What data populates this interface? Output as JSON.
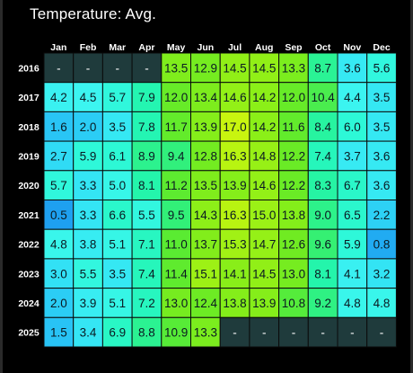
{
  "header": {
    "title": "Temperature: Avg."
  },
  "colors": {
    "missing": "#1f3b3c",
    "background": "#000000",
    "text": "#ffffff"
  },
  "chart_data": {
    "type": "heatmap",
    "title": "Temperature: Avg.",
    "columns": [
      "Jan",
      "Feb",
      "Mar",
      "Apr",
      "May",
      "Jun",
      "Jul",
      "Aug",
      "Sep",
      "Oct",
      "Nov",
      "Dec"
    ],
    "rows": [
      "2016",
      "2017",
      "2018",
      "2019",
      "2020",
      "2021",
      "2022",
      "2023",
      "2024",
      "2025"
    ],
    "missing_label": "-",
    "values": [
      [
        null,
        null,
        null,
        null,
        13.5,
        12.9,
        14.5,
        14.5,
        13.3,
        8.7,
        3.6,
        5.6
      ],
      [
        4.2,
        4.5,
        5.7,
        7.9,
        12.0,
        13.4,
        14.6,
        14.2,
        12.0,
        10.4,
        4.4,
        3.5
      ],
      [
        1.6,
        2.0,
        3.5,
        7.8,
        11.7,
        13.9,
        17.0,
        14.2,
        11.6,
        8.4,
        6.0,
        3.5
      ],
      [
        2.7,
        5.9,
        6.1,
        8.9,
        9.4,
        12.8,
        16.3,
        14.8,
        12.2,
        7.4,
        3.7,
        3.6
      ],
      [
        5.7,
        3.3,
        5.0,
        8.1,
        11.2,
        13.5,
        13.9,
        14.6,
        12.2,
        8.3,
        6.7,
        3.6
      ],
      [
        0.5,
        3.3,
        6.6,
        5.5,
        9.5,
        14.3,
        16.3,
        15.0,
        13.8,
        9.0,
        6.5,
        2.2
      ],
      [
        4.8,
        3.8,
        5.1,
        7.1,
        11.0,
        13.7,
        15.3,
        14.7,
        12.6,
        9.6,
        5.9,
        0.8
      ],
      [
        3.0,
        5.5,
        3.5,
        7.4,
        11.4,
        15.1,
        14.1,
        14.5,
        13.0,
        8.1,
        4.1,
        3.2
      ],
      [
        2.0,
        3.9,
        5.1,
        7.2,
        13.0,
        12.4,
        13.8,
        13.9,
        10.8,
        9.2,
        4.8,
        4.8
      ],
      [
        1.5,
        3.4,
        6.9,
        8.8,
        10.9,
        13.3,
        null,
        null,
        null,
        null,
        null,
        null
      ]
    ]
  }
}
